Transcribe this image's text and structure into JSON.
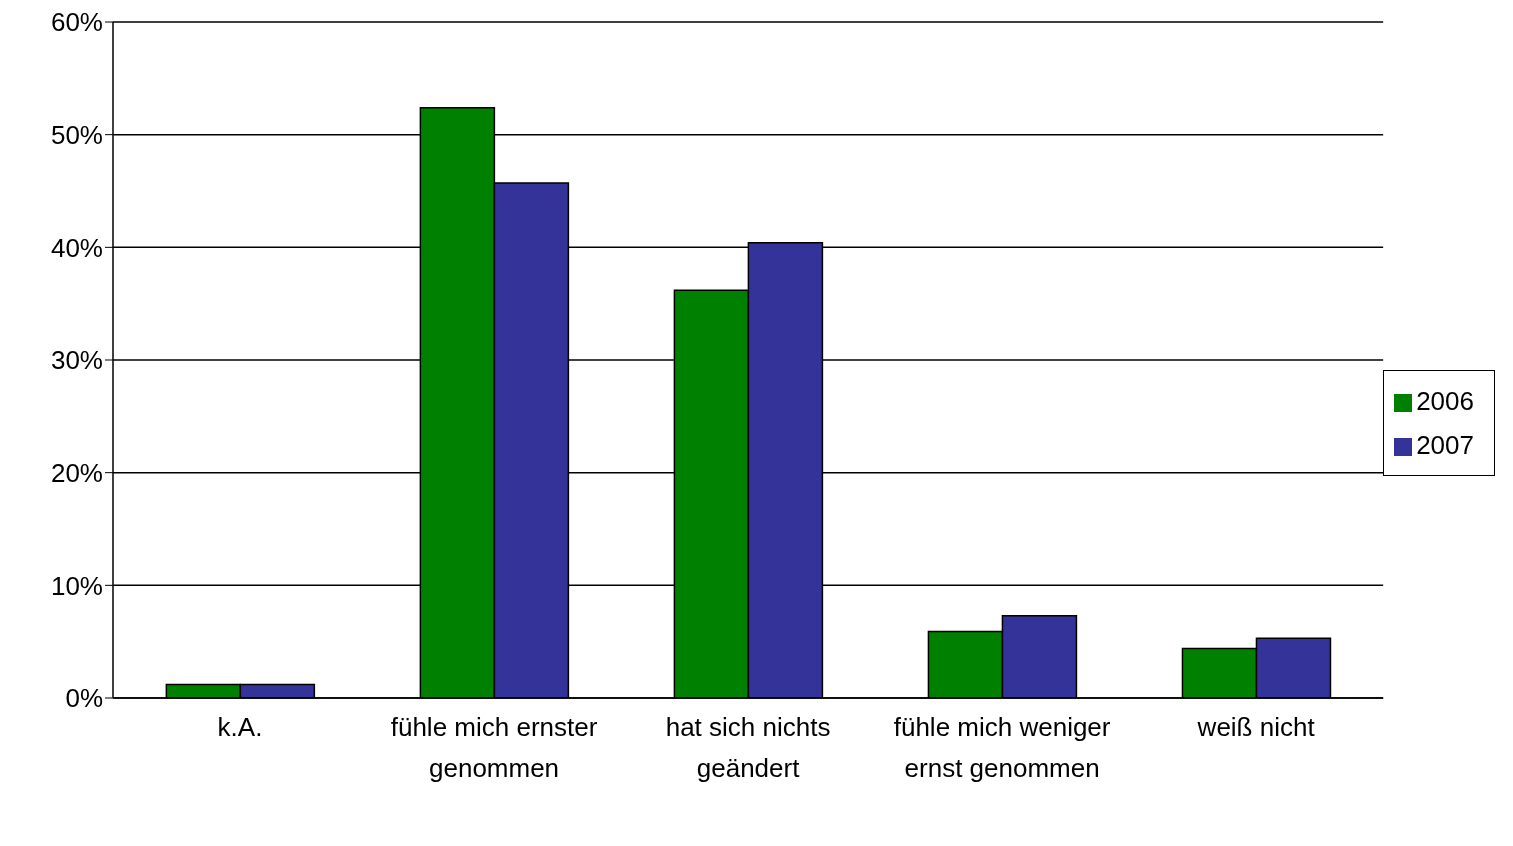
{
  "chart_data": {
    "type": "bar",
    "categories": [
      "k.A.",
      "fühle mich ernster genommen",
      "hat sich nichts geändert",
      "fühle mich weniger ernst genommen",
      "weiß nicht"
    ],
    "series": [
      {
        "name": "2006",
        "color": "#008000",
        "values": [
          1.2,
          52.4,
          36.2,
          5.9,
          4.4
        ]
      },
      {
        "name": "2007",
        "color": "#333399",
        "values": [
          1.2,
          45.7,
          40.4,
          7.3,
          5.3
        ]
      }
    ],
    "ylim": [
      0,
      60
    ],
    "yticks": [
      {
        "value": 0,
        "label": "0%"
      },
      {
        "value": 10,
        "label": "10%"
      },
      {
        "value": 20,
        "label": "20%"
      },
      {
        "value": 30,
        "label": "30%"
      },
      {
        "value": 40,
        "label": "40%"
      },
      {
        "value": 50,
        "label": "50%"
      },
      {
        "value": 60,
        "label": "60%"
      }
    ],
    "grid": "y",
    "legend": "right"
  }
}
